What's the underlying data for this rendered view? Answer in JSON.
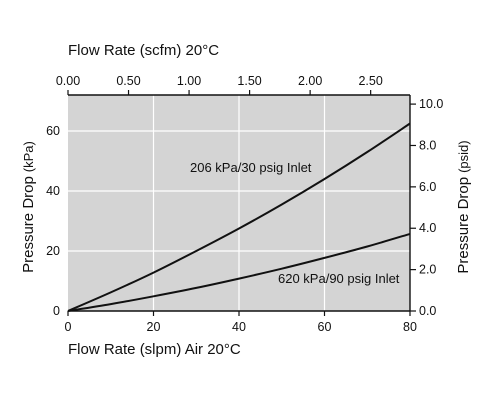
{
  "chart_data": {
    "type": "line",
    "x_axis_bottom": {
      "label": "Flow Rate (slpm) Air 20°C",
      "range": [
        0,
        80
      ],
      "ticks": [
        0,
        20,
        40,
        60,
        80
      ],
      "tick_labels": [
        "0",
        "20",
        "40",
        "60",
        "80"
      ]
    },
    "x_axis_top": {
      "label": "Flow Rate (scfm) 20°C",
      "range": [
        0,
        2.825
      ],
      "ticks": [
        0,
        0.5,
        1.0,
        1.5,
        2.0,
        2.5
      ],
      "tick_labels": [
        "0.00",
        "0.50",
        "1.00",
        "1.50",
        "2.00",
        "2.50"
      ]
    },
    "y_axis_left": {
      "label_main": "Pressure Drop",
      "label_unit": "(kPa)",
      "range": [
        0,
        72
      ],
      "ticks": [
        0,
        20,
        40,
        60
      ],
      "tick_labels": [
        "0",
        "20",
        "40",
        "60"
      ]
    },
    "y_axis_right": {
      "label_main": "Pressure Drop",
      "label_unit": "(psid)",
      "range": [
        0,
        10.44
      ],
      "ticks": [
        0,
        2,
        4,
        6,
        8,
        10
      ],
      "tick_labels": [
        "0.0",
        "2.0",
        "4.0",
        "6.0",
        "8.0",
        "10.0"
      ]
    },
    "grid": true,
    "background": "#d4d4d4",
    "series": [
      {
        "name": "206 kPa/30 psig Inlet",
        "color": "#111111",
        "x": [
          0,
          10,
          20,
          30,
          40,
          50,
          60,
          70,
          80
        ],
        "y": [
          0,
          6.2,
          12.8,
          20.0,
          27.5,
          35.5,
          44.0,
          53.0,
          62.5
        ]
      },
      {
        "name": "620 kPa/90 psig Inlet",
        "color": "#111111",
        "x": [
          0,
          10,
          20,
          30,
          40,
          50,
          60,
          70,
          80
        ],
        "y": [
          0,
          2.3,
          4.9,
          7.7,
          10.8,
          14.1,
          17.7,
          21.5,
          25.7
        ]
      }
    ]
  }
}
